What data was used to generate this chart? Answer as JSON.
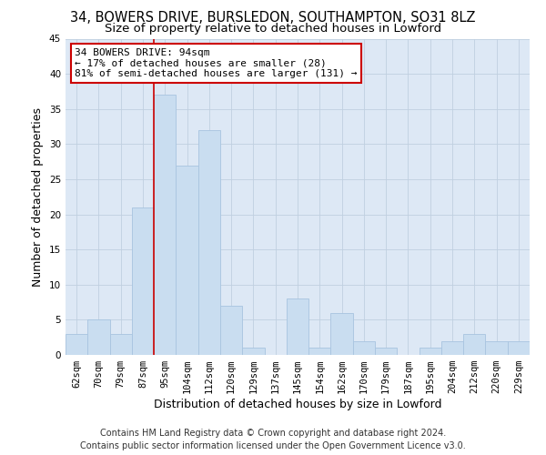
{
  "title": "34, BOWERS DRIVE, BURSLEDON, SOUTHAMPTON, SO31 8LZ",
  "subtitle": "Size of property relative to detached houses in Lowford",
  "xlabel": "Distribution of detached houses by size in Lowford",
  "ylabel": "Number of detached properties",
  "bar_labels": [
    "62sqm",
    "70sqm",
    "79sqm",
    "87sqm",
    "95sqm",
    "104sqm",
    "112sqm",
    "120sqm",
    "129sqm",
    "137sqm",
    "145sqm",
    "154sqm",
    "162sqm",
    "170sqm",
    "179sqm",
    "187sqm",
    "195sqm",
    "204sqm",
    "212sqm",
    "220sqm",
    "229sqm"
  ],
  "bar_values": [
    3,
    5,
    3,
    21,
    37,
    27,
    32,
    7,
    1,
    0,
    8,
    1,
    6,
    2,
    1,
    0,
    1,
    2,
    3,
    2,
    2
  ],
  "bar_color": "#c9ddf0",
  "bar_edge_color": "#a8c4e0",
  "vline_color": "#cc0000",
  "vline_x_index": 4,
  "annotation_title": "34 BOWERS DRIVE: 94sqm",
  "annotation_line1": "← 17% of detached houses are smaller (28)",
  "annotation_line2": "81% of semi-detached houses are larger (131) →",
  "annotation_box_color": "#ffffff",
  "annotation_box_edge": "#cc0000",
  "ylim": [
    0,
    45
  ],
  "yticks": [
    0,
    5,
    10,
    15,
    20,
    25,
    30,
    35,
    40,
    45
  ],
  "footer_line1": "Contains HM Land Registry data © Crown copyright and database right 2024.",
  "footer_line2": "Contains public sector information licensed under the Open Government Licence v3.0.",
  "bg_color": "#ffffff",
  "plot_bg_color": "#dde8f5",
  "grid_color": "#c0cfe0",
  "title_fontsize": 10.5,
  "subtitle_fontsize": 9.5,
  "axis_label_fontsize": 9,
  "tick_fontsize": 7.5,
  "annotation_fontsize": 8,
  "footer_fontsize": 7
}
